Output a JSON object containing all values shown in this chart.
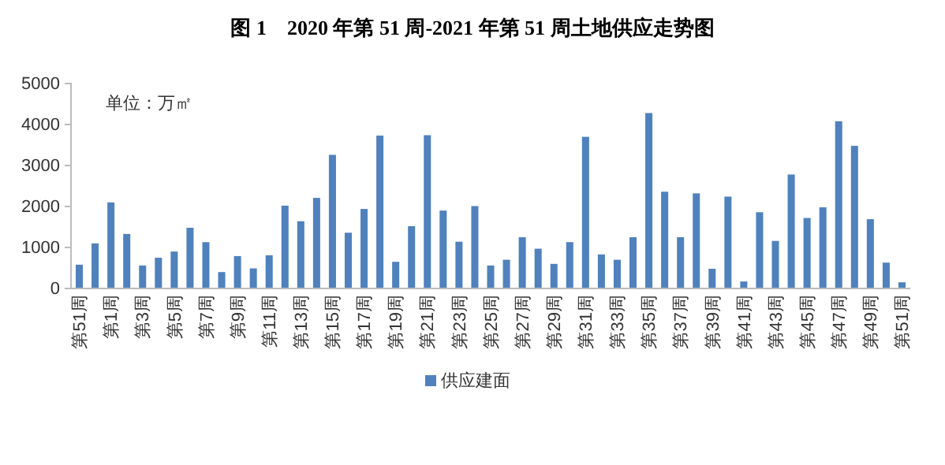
{
  "chart_data": {
    "type": "bar",
    "title": "图 1　2020 年第 51 周-2021 年第 51 周土地供应走势图",
    "annotations": [
      "单位：万㎡"
    ],
    "categories": [
      "第51周",
      null,
      "第1周",
      null,
      "第3周",
      null,
      "第5周",
      null,
      "第7周",
      null,
      "第9周",
      null,
      "第11周",
      null,
      "第13周",
      null,
      "第15周",
      null,
      "第17周",
      null,
      "第19周",
      null,
      "第21周",
      null,
      "第23周",
      null,
      "第25周",
      null,
      "第27周",
      null,
      "第29周",
      null,
      "第31周",
      null,
      "第33周",
      null,
      "第35周",
      null,
      "第37周",
      null,
      "第39周",
      null,
      "第41周",
      null,
      "第43周",
      null,
      "第45周",
      null,
      "第47周",
      null,
      "第49周",
      null,
      "第51周"
    ],
    "series": [
      {
        "name": "供应建面",
        "color": "#4f81bd",
        "values": [
          580,
          1100,
          2100,
          1330,
          560,
          750,
          900,
          1480,
          1130,
          400,
          790,
          490,
          810,
          2020,
          1640,
          2210,
          3260,
          1360,
          1940,
          3730,
          650,
          1520,
          3740,
          1900,
          1140,
          2010,
          560,
          700,
          1250,
          970,
          600,
          1130,
          3700,
          830,
          700,
          1250,
          4280,
          2360,
          1250,
          2320,
          480,
          2240,
          170,
          1860,
          1160,
          2780,
          1720,
          1980,
          4080,
          3480,
          1690,
          630,
          150
        ]
      }
    ],
    "ylim": [
      0,
      5000
    ],
    "yticks": [
      0,
      1000,
      2000,
      3000,
      4000,
      5000
    ],
    "grid": false,
    "legend": "bottom"
  }
}
